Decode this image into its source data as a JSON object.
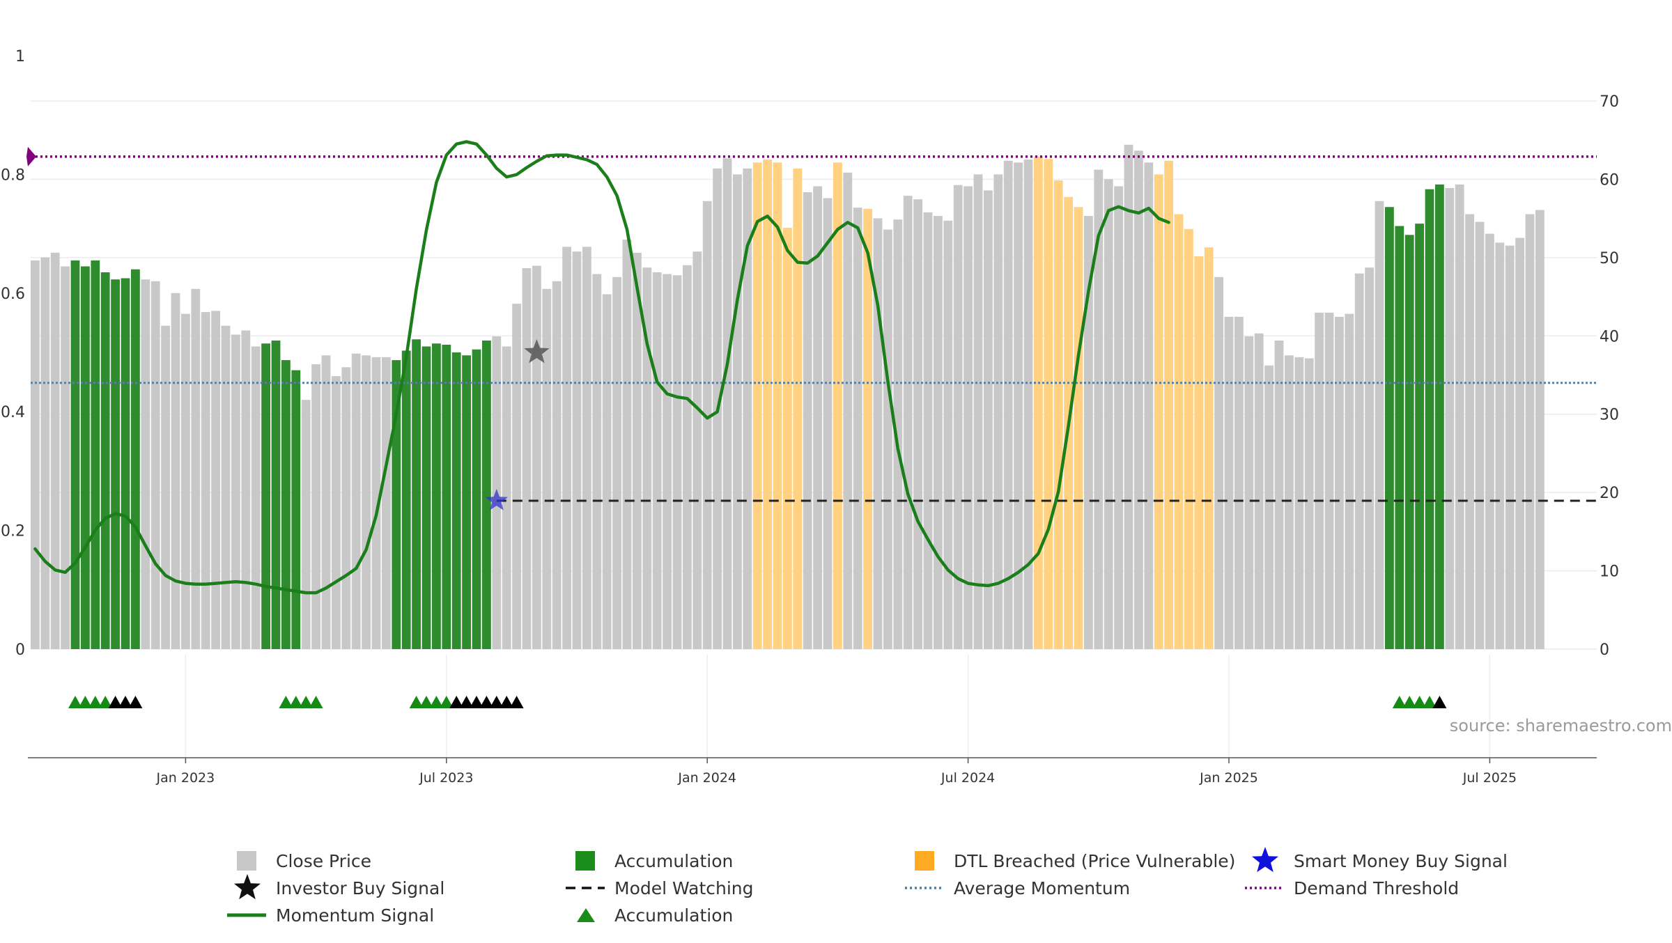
{
  "chart_data": {
    "type": "bar",
    "source_text": "source: sharemaestro.com",
    "left_axis": {
      "ticks": [
        "0",
        "0.2",
        "0.4",
        "0.6",
        "0.8",
        "1"
      ],
      "range": [
        0,
        1
      ]
    },
    "right_axis": {
      "ticks": [
        "0",
        "10",
        "20",
        "30",
        "40",
        "50",
        "60",
        "70"
      ],
      "range": [
        0,
        70
      ]
    },
    "x_axis": {
      "ticks": [
        "Jan 2023",
        "Jul 2023",
        "Jan 2024",
        "Jul 2024",
        "Jan 2025",
        "Jul 2025"
      ],
      "tick_week_index": [
        15,
        41,
        67,
        93,
        119,
        145
      ]
    },
    "colors": {
      "close": "#c8c8c8",
      "accumulation": "#2e8b2e",
      "dtl": "#ffd180",
      "momentum": "#1a7f1a",
      "average": "#5a7f9a",
      "demand": "#800080",
      "watching": "#222222",
      "smart_money": "#3333cc",
      "investor": "#555555"
    },
    "series": [
      {
        "name": "Close Price",
        "values": [
          0.655,
          0.66,
          0.668,
          0.645,
          0.655,
          0.645,
          0.655,
          0.635,
          0.623,
          0.625,
          0.64,
          0.623,
          0.62,
          0.545,
          0.6,
          0.565,
          0.607,
          0.568,
          0.57,
          0.545,
          0.53,
          0.537,
          0.51,
          0.515,
          0.52,
          0.487,
          0.47,
          0.42,
          0.48,
          0.495,
          0.46,
          0.475,
          0.498,
          0.495,
          0.492,
          0.492,
          0.487,
          0.503,
          0.522,
          0.51,
          0.515,
          0.513,
          0.5,
          0.495,
          0.505,
          0.52,
          0.527,
          0.51,
          0.582,
          0.642,
          0.646,
          0.607,
          0.62,
          0.678,
          0.67,
          0.678,
          0.632,
          0.598,
          0.627,
          0.69,
          0.668,
          0.643,
          0.635,
          0.632,
          0.63,
          0.647,
          0.67,
          0.755,
          0.81,
          0.827,
          0.8,
          0.81,
          0.82,
          0.825,
          0.82,
          0.71,
          0.81,
          0.77,
          0.78,
          0.76,
          0.82,
          0.803,
          0.744,
          0.742,
          0.726,
          0.707,
          0.724,
          0.764,
          0.758,
          0.736,
          0.73,
          0.722,
          0.782,
          0.78,
          0.8,
          0.773,
          0.8,
          0.823,
          0.82,
          0.825,
          0.83,
          0.826,
          0.79,
          0.762,
          0.745,
          0.73,
          0.808,
          0.792,
          0.78,
          0.85,
          0.84,
          0.82,
          0.8,
          0.823,
          0.733,
          0.708,
          0.662,
          0.677,
          0.627,
          0.56,
          0.56,
          0.527,
          0.532,
          0.478,
          0.52,
          0.495,
          0.492,
          0.49,
          0.567,
          0.567,
          0.56,
          0.565,
          0.633,
          0.643,
          0.755,
          0.745,
          0.713,
          0.698,
          0.717,
          0.775,
          0.783,
          0.777,
          0.783,
          0.733,
          0.72,
          0.7,
          0.685,
          0.68,
          0.693,
          0.733,
          0.74
        ]
      },
      {
        "name": "Accumulation",
        "week_indices": [
          4,
          5,
          6,
          7,
          8,
          9,
          10,
          23,
          24,
          25,
          26,
          36,
          37,
          38,
          39,
          40,
          41,
          42,
          43,
          44,
          45,
          135,
          136,
          137,
          138,
          139,
          140
        ]
      },
      {
        "name": "DTL Breached (Price Vulnerable)",
        "week_indices": [
          72,
          73,
          74,
          75,
          76,
          80,
          83,
          100,
          101,
          102,
          103,
          104,
          112,
          113,
          114,
          115,
          116,
          117
        ]
      },
      {
        "name": "Momentum Signal",
        "values": [
          12.8,
          11.2,
          10.1,
          9.8,
          11.0,
          13.0,
          15.2,
          16.7,
          17.3,
          17.0,
          15.6,
          13.2,
          10.9,
          9.4,
          8.7,
          8.4,
          8.3,
          8.3,
          8.4,
          8.5,
          8.6,
          8.5,
          8.3,
          8.0,
          7.8,
          7.6,
          7.4,
          7.2,
          7.2,
          7.8,
          8.6,
          9.4,
          10.3,
          12.7,
          17.1,
          23.5,
          30.0,
          37.3,
          46.0,
          53.5,
          59.6,
          63.1,
          64.5,
          64.8,
          64.5,
          63.1,
          61.4,
          60.3,
          60.6,
          61.5,
          62.3,
          63.0,
          63.1,
          63.1,
          62.8,
          62.5,
          61.9,
          60.3,
          57.9,
          53.6,
          46.2,
          39.0,
          34.1,
          32.6,
          32.2,
          32.0,
          30.8,
          29.5,
          30.3,
          36.4,
          44.6,
          51.5,
          54.6,
          55.3,
          53.9,
          50.9,
          49.4,
          49.3,
          50.2,
          51.9,
          53.6,
          54.5,
          53.8,
          50.6,
          43.9,
          34.2,
          25.6,
          19.8,
          16.3,
          14.0,
          11.8,
          10.1,
          9.0,
          8.4,
          8.2,
          8.1,
          8.4,
          9.0,
          9.8,
          10.8,
          12.2,
          15.3,
          20.1,
          28.5,
          37.5,
          45.7,
          52.8,
          56.0,
          56.5,
          56.0,
          55.7,
          56.3,
          55.0,
          54.5
        ]
      },
      {
        "name": "Investor Buy Signal",
        "point": {
          "week_index": 50,
          "value": 0.5
        }
      },
      {
        "name": "Model Watching",
        "value": 0.25,
        "from_week_index": 46
      },
      {
        "name": "Smart Money Buy Signal",
        "point": {
          "week_index": 46,
          "value": 0.25
        }
      },
      {
        "name": "Average Momentum",
        "value": 34
      },
      {
        "name": "Demand Threshold",
        "value": 0.83
      },
      {
        "name": "Accumulation markers",
        "green_week_indices": [
          4,
          5,
          6,
          7,
          25,
          26,
          27,
          28,
          38,
          39,
          40,
          41,
          136,
          137,
          138,
          139
        ],
        "black_week_indices": [
          8,
          9,
          10,
          42,
          43,
          44,
          45,
          46,
          47,
          48,
          140
        ]
      }
    ],
    "legend": [
      {
        "label": "Close Price",
        "symbol": "square",
        "color": "#c8c8c8"
      },
      {
        "label": "Accumulation",
        "symbol": "square",
        "color": "#1a8c1a"
      },
      {
        "label": "DTL Breached (Price Vulnerable)",
        "symbol": "square",
        "color": "#ffaa22"
      },
      {
        "label": "Smart Money Buy Signal",
        "symbol": "star",
        "color": "#1111dd"
      },
      {
        "label": "Investor Buy Signal",
        "symbol": "star",
        "color": "#111111"
      },
      {
        "label": "Model Watching",
        "symbol": "dash-line",
        "color": "#111111"
      },
      {
        "label": "Average Momentum",
        "symbol": "dot-line",
        "color": "#4a7fa5"
      },
      {
        "label": "Demand Threshold",
        "symbol": "dot-line",
        "color": "#800080"
      },
      {
        "label": "Momentum Signal",
        "symbol": "line",
        "color": "#1a7f1a"
      },
      {
        "label": "Accumulation",
        "symbol": "triangle",
        "color": "#1a8c1a"
      }
    ]
  }
}
